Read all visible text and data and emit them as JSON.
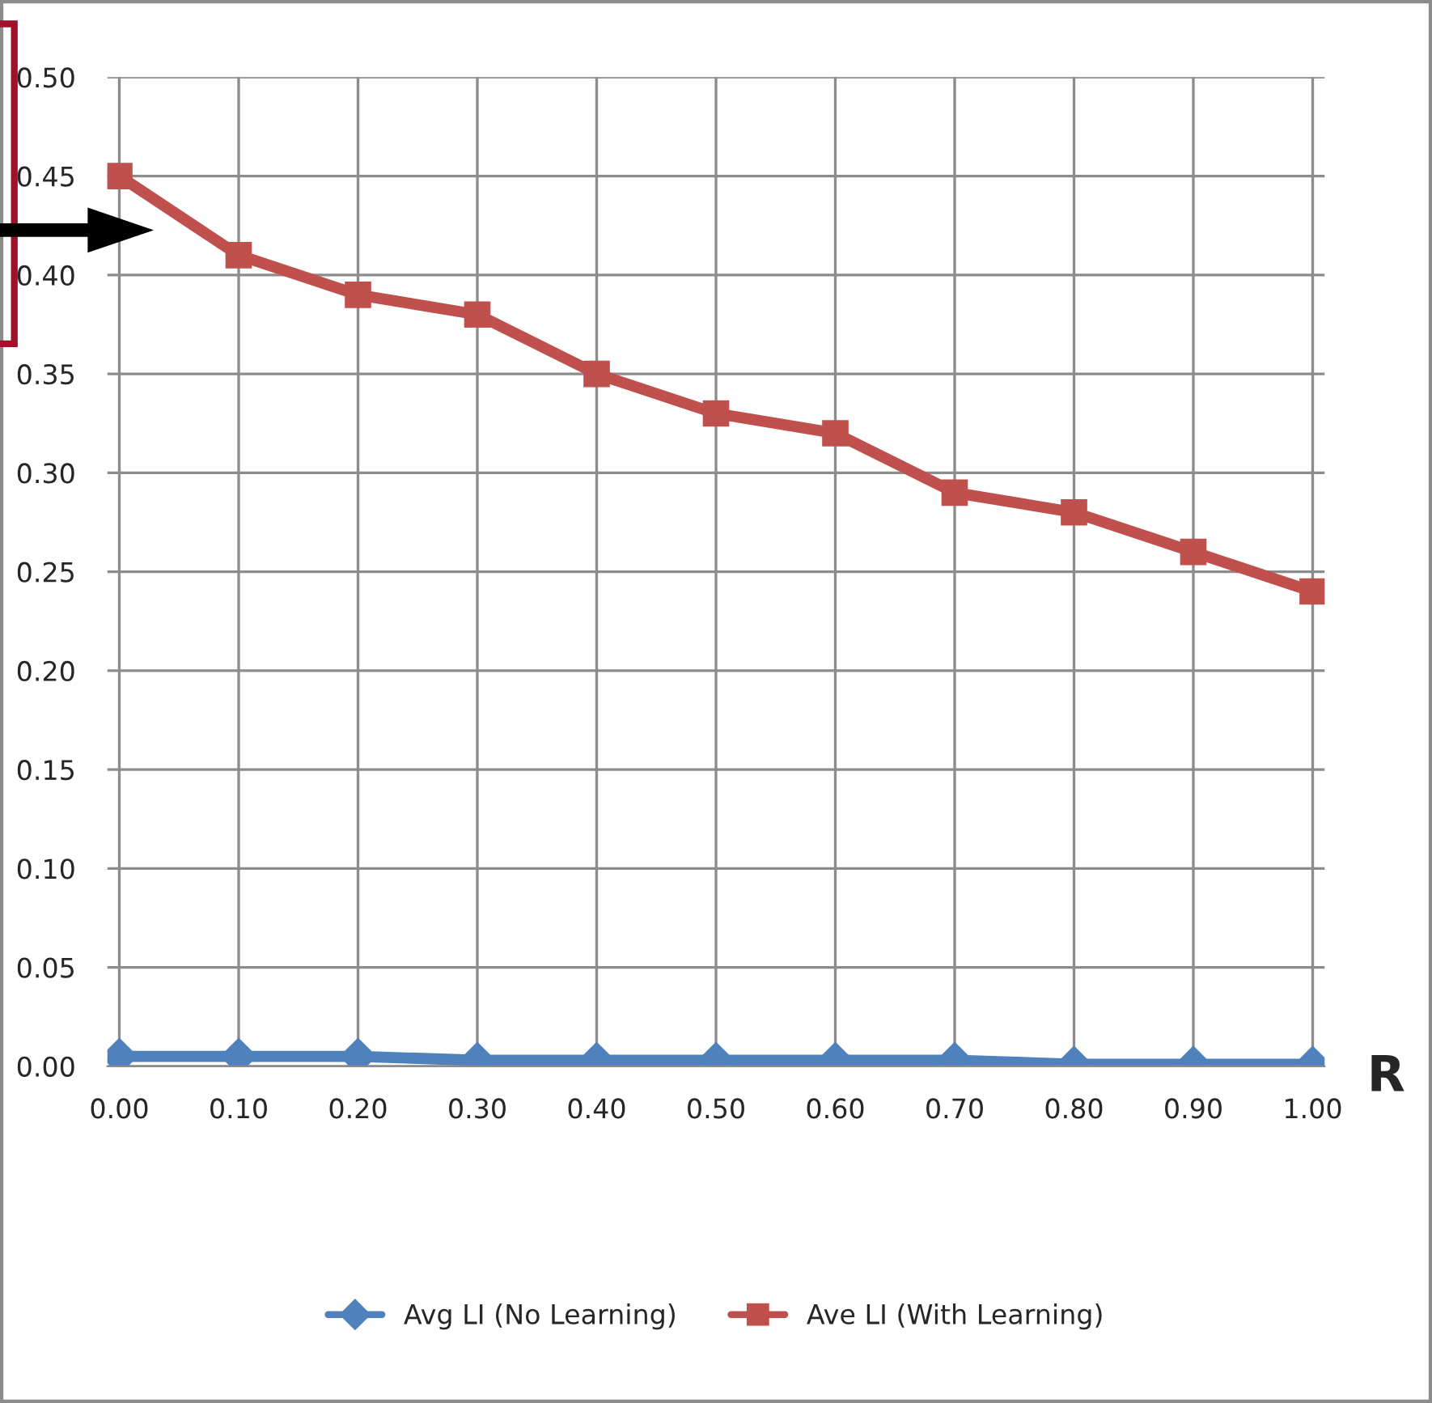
{
  "chart_data": {
    "type": "line",
    "categories": [
      "0.00",
      "0.10",
      "0.20",
      "0.30",
      "0.40",
      "0.50",
      "0.60",
      "0.70",
      "0.80",
      "0.90",
      "1.00"
    ],
    "series": [
      {
        "name": "Avg LI (No Learning)",
        "color": "#4f81bd",
        "marker": "diamond",
        "values": [
          0.005,
          0.005,
          0.005,
          0.003,
          0.003,
          0.003,
          0.003,
          0.003,
          0.001,
          0.001,
          0.001
        ]
      },
      {
        "name": "Ave LI (With Learning)",
        "color": "#c0504d",
        "marker": "square",
        "values": [
          0.45,
          0.41,
          0.39,
          0.38,
          0.35,
          0.33,
          0.32,
          0.29,
          0.28,
          0.26,
          0.24
        ]
      }
    ],
    "ylim": [
      0,
      0.5
    ],
    "yticks": [
      {
        "value": 0,
        "label": "0.00"
      },
      {
        "value": 0.05,
        "label": "0.05"
      },
      {
        "value": 0.1,
        "label": "0.10"
      },
      {
        "value": 0.15,
        "label": "0.15"
      },
      {
        "value": 0.2,
        "label": "0.20"
      },
      {
        "value": 0.25,
        "label": "0.25"
      },
      {
        "value": 0.3,
        "label": "0.30"
      },
      {
        "value": 0.35,
        "label": "0.35"
      },
      {
        "value": 0.4,
        "label": "0.40"
      },
      {
        "value": 0.45,
        "label": "0.45"
      },
      {
        "value": 0.5,
        "label": "0.50"
      }
    ],
    "grid": true,
    "legend": "bottom",
    "annotations": [
      "R"
    ]
  }
}
